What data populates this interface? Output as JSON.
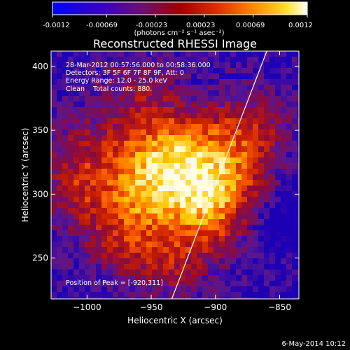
{
  "colorbar": {
    "tick_labels": [
      "-0.0012",
      "-0.00069",
      "-0.00023",
      "0.00023",
      "0.00069",
      "0.0012"
    ],
    "unit_label": "(photons cm⁻² s⁻¹ asec⁻²)",
    "range": [
      -0.0012,
      0.0012
    ]
  },
  "chart_data": {
    "type": "heatmap",
    "title": "Reconstructed RHESSI Image",
    "xlabel": "Heliocentric X (arcsec)",
    "ylabel": "Heliocentric Y (arcsec)",
    "xlim": [
      -1028,
      -835
    ],
    "ylim": [
      218,
      412
    ],
    "x_ticks": [
      -1000,
      -950,
      -900,
      -850
    ],
    "y_ticks": [
      250,
      300,
      350,
      400
    ],
    "x_tick_labels": [
      "−1000",
      "−950",
      "−900",
      "−850"
    ],
    "y_tick_labels": [
      "250",
      "300",
      "350",
      "400"
    ],
    "color_scale": [
      "#1e00b4",
      "#5a1690",
      "#8c0a3c",
      "#c81e00",
      "#ff6400",
      "#ffc800",
      "#ffffe6"
    ],
    "peak": [
      -920,
      311
    ],
    "limb_line": {
      "x": [
        -934,
        -860
      ],
      "y": [
        218,
        412
      ]
    },
    "annotations": [
      "28-Mar-2012 00:57:56.000 to 00:58:36.000",
      "Detectors: 3F 5F 6F 7F 8F 9F, Att: 0",
      "Energy Range: 12.0 - 25.0 keV",
      "Clean    Total counts: 880.",
      "Position of Peak = [-920,311]"
    ]
  },
  "footer": {
    "date": "6-May-2014 10:12"
  }
}
